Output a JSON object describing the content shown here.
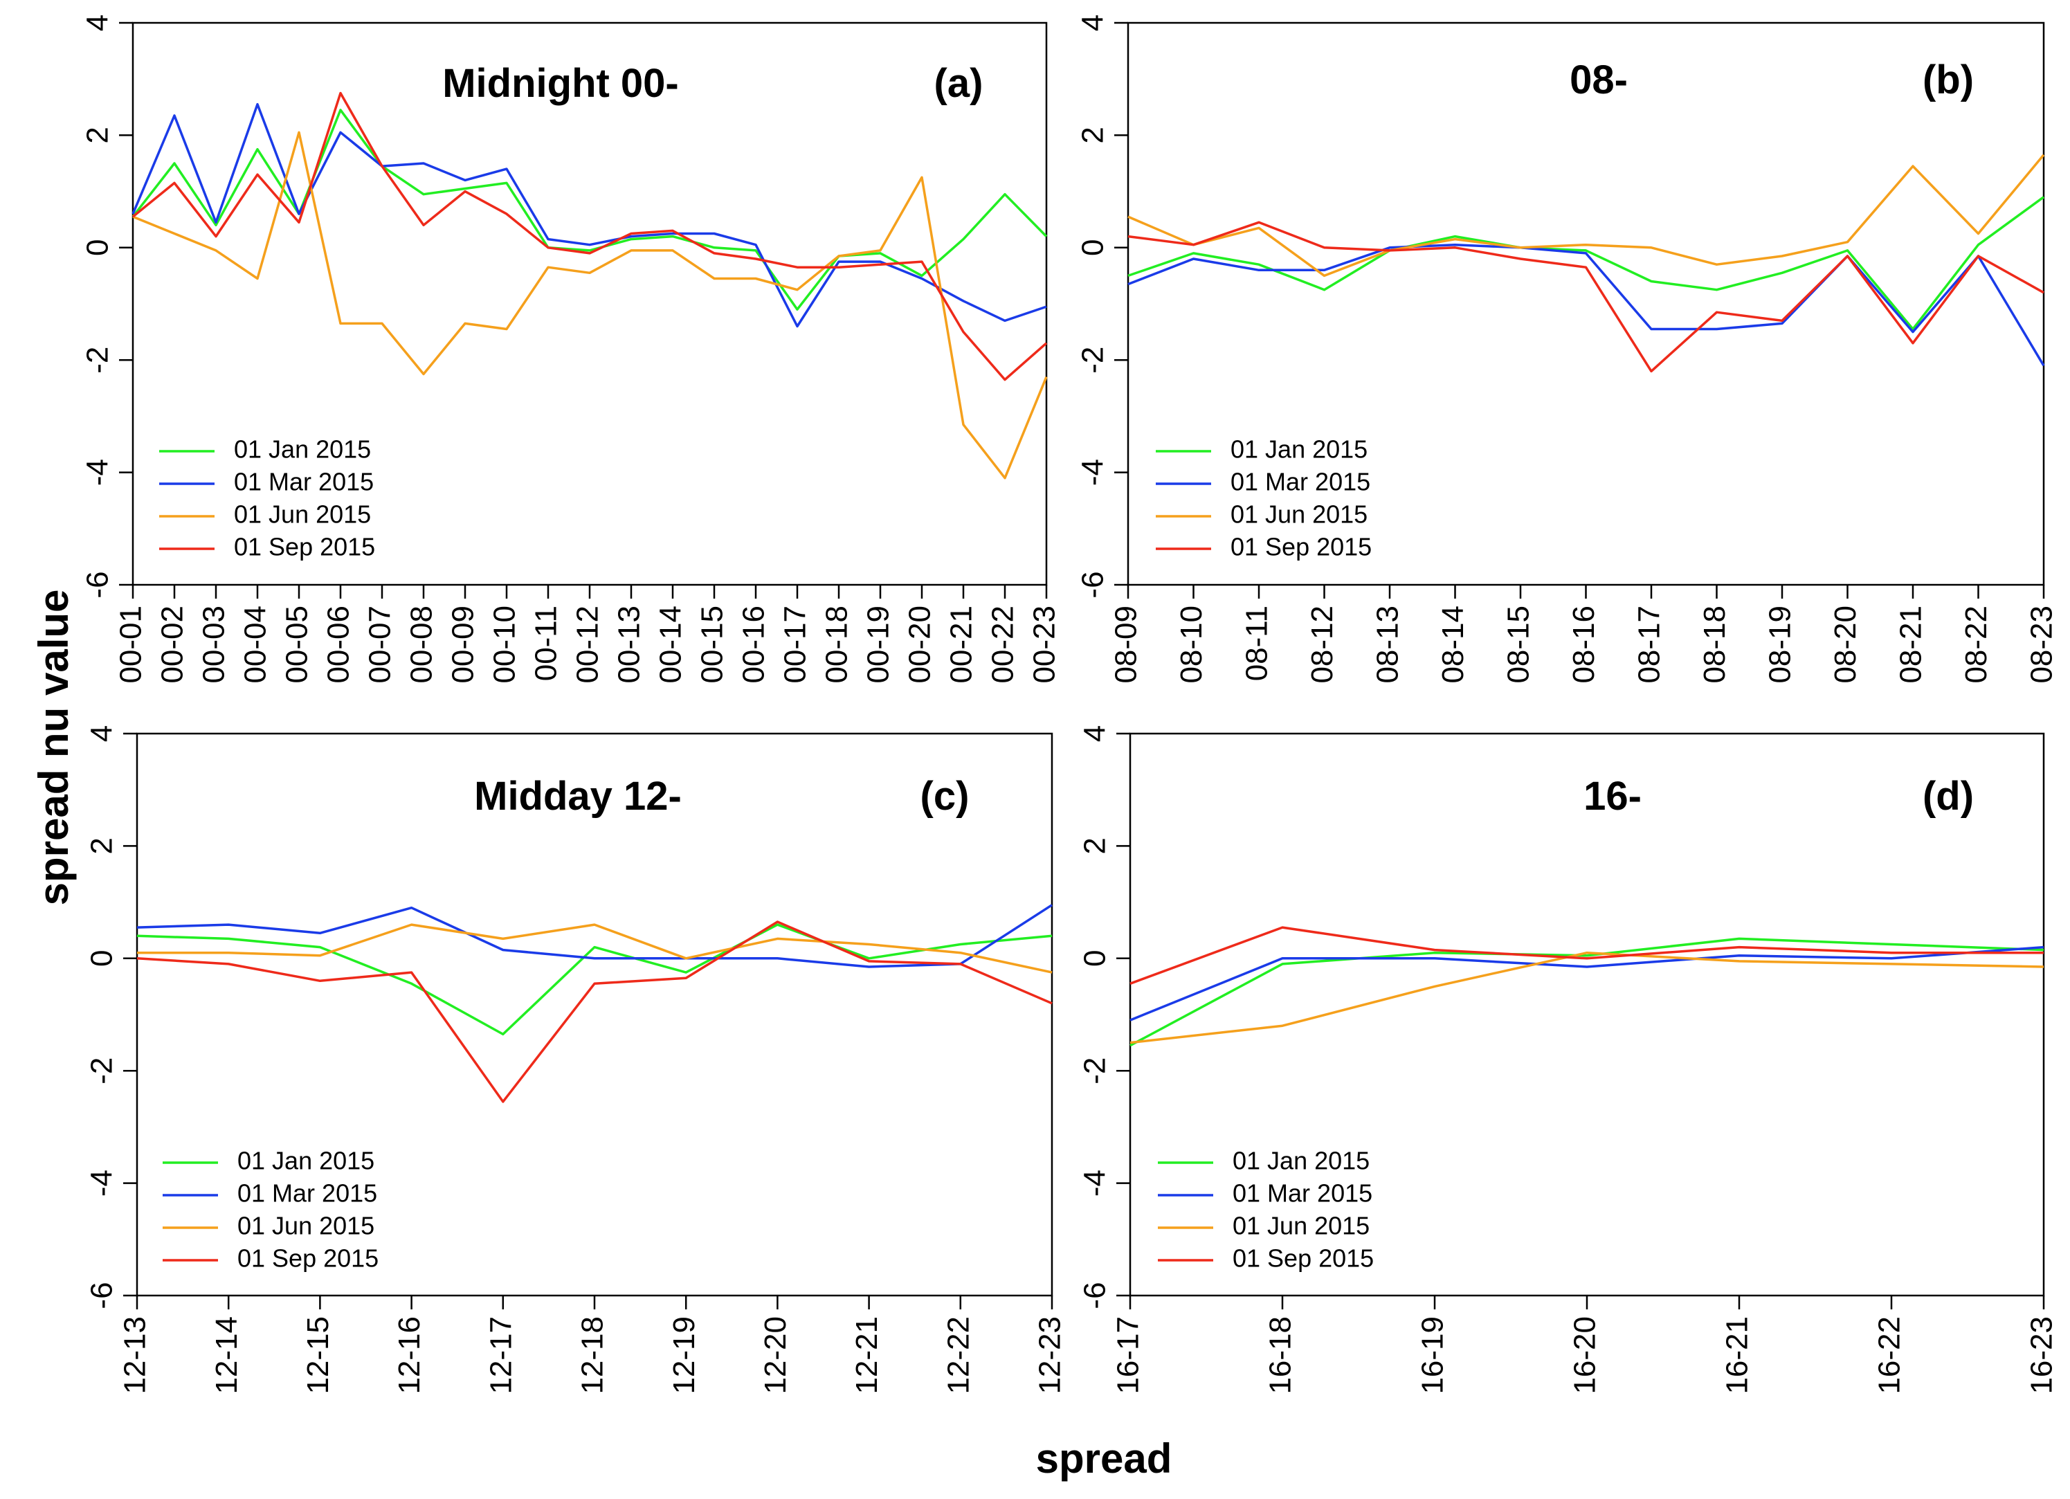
{
  "figure": {
    "ylabel": "spread nu value",
    "xlabel": "spread"
  },
  "series_colors": {
    "01 Jan 2015": "#22ee22",
    "01 Mar 2015": "#1a3be8",
    "01 Jun 2015": "#f5a01c",
    "01 Sep 2015": "#ee2a1a"
  },
  "chart_data": [
    {
      "type": "line",
      "panel": "a",
      "title": "Midnight 00-",
      "tag": "(a)",
      "ylim": [
        -6,
        4
      ],
      "yticks": [
        "-6",
        "-4",
        "-2",
        "0",
        "2",
        "4"
      ],
      "categories": [
        "00-01",
        "00-02",
        "00-03",
        "00-04",
        "00-05",
        "00-06",
        "00-07",
        "00-08",
        "00-09",
        "00-10",
        "00-11",
        "00-12",
        "00-13",
        "00-14",
        "00-15",
        "00-16",
        "00-17",
        "00-18",
        "00-19",
        "00-20",
        "00-21",
        "00-22",
        "00-23"
      ],
      "legend": [
        "01 Jan 2015",
        "01 Mar 2015",
        "01 Jun 2015",
        "01 Sep 2015"
      ],
      "series": [
        {
          "name": "01 Jan 2015",
          "values": [
            0.55,
            1.5,
            0.4,
            1.75,
            0.6,
            2.45,
            1.45,
            0.95,
            1.05,
            1.15,
            0.0,
            -0.05,
            0.15,
            0.2,
            0.0,
            -0.05,
            -1.1,
            -0.15,
            -0.1,
            -0.5,
            0.15,
            0.95,
            0.2
          ]
        },
        {
          "name": "01 Mar 2015",
          "values": [
            0.6,
            2.35,
            0.45,
            2.55,
            0.6,
            2.05,
            1.45,
            1.5,
            1.2,
            1.4,
            0.15,
            0.05,
            0.2,
            0.25,
            0.25,
            0.05,
            -1.4,
            -0.25,
            -0.25,
            -0.55,
            -0.95,
            -1.3,
            -1.05
          ]
        },
        {
          "name": "01 Jun 2015",
          "values": [
            0.55,
            0.25,
            -0.05,
            -0.55,
            2.05,
            -1.35,
            -1.35,
            -2.25,
            -1.35,
            -1.45,
            -0.35,
            -0.45,
            -0.05,
            -0.05,
            -0.55,
            -0.55,
            -0.75,
            -0.15,
            -0.05,
            1.25,
            -3.15,
            -4.1,
            -2.3
          ]
        },
        {
          "name": "01 Sep 2015",
          "values": [
            0.55,
            1.15,
            0.2,
            1.3,
            0.45,
            2.75,
            1.45,
            0.4,
            1.0,
            0.6,
            0.0,
            -0.1,
            0.25,
            0.3,
            -0.1,
            -0.2,
            -0.35,
            -0.35,
            -0.3,
            -0.25,
            -1.5,
            -2.35,
            -1.7
          ]
        }
      ]
    },
    {
      "type": "line",
      "panel": "b",
      "title": "08-",
      "tag": "(b)",
      "ylim": [
        -6,
        4
      ],
      "yticks": [
        "-6",
        "-4",
        "-2",
        "0",
        "2",
        "4"
      ],
      "categories": [
        "08-09",
        "08-10",
        "08-11",
        "08-12",
        "08-13",
        "08-14",
        "08-15",
        "08-16",
        "08-17",
        "08-18",
        "08-19",
        "08-20",
        "08-21",
        "08-22",
        "08-23"
      ],
      "legend": [
        "01 Jan 2015",
        "01 Mar 2015",
        "01 Jun 2015",
        "01 Sep 2015"
      ],
      "series": [
        {
          "name": "01 Jan 2015",
          "values": [
            -0.5,
            -0.1,
            -0.3,
            -0.75,
            -0.05,
            0.2,
            0.0,
            -0.05,
            -0.6,
            -0.75,
            -0.45,
            -0.05,
            -1.45,
            0.05,
            0.9
          ]
        },
        {
          "name": "01 Mar 2015",
          "values": [
            -0.65,
            -0.2,
            -0.4,
            -0.4,
            0.0,
            0.05,
            0.0,
            -0.1,
            -1.45,
            -1.45,
            -1.35,
            -0.15,
            -1.5,
            -0.15,
            -2.1
          ]
        },
        {
          "name": "01 Jun 2015",
          "values": [
            0.55,
            0.05,
            0.35,
            -0.5,
            -0.05,
            0.15,
            0.0,
            0.05,
            0.0,
            -0.3,
            -0.15,
            0.1,
            1.45,
            0.25,
            1.65
          ]
        },
        {
          "name": "01 Sep 2015",
          "values": [
            0.2,
            0.05,
            0.45,
            0.0,
            -0.05,
            0.0,
            -0.2,
            -0.35,
            -2.2,
            -1.15,
            -1.3,
            -0.15,
            -1.7,
            -0.15,
            -0.8
          ]
        }
      ]
    },
    {
      "type": "line",
      "panel": "c",
      "title": "Midday 12-",
      "tag": "(c)",
      "ylim": [
        -6,
        4
      ],
      "yticks": [
        "-6",
        "-4",
        "-2",
        "0",
        "2",
        "4"
      ],
      "categories": [
        "12-13",
        "12-14",
        "12-15",
        "12-16",
        "12-17",
        "12-18",
        "12-19",
        "12-20",
        "12-21",
        "12-22",
        "12-23"
      ],
      "legend": [
        "01 Jan 2015",
        "01 Mar 2015",
        "01 Jun 2015",
        "01 Sep 2015"
      ],
      "series": [
        {
          "name": "01 Jan 2015",
          "values": [
            0.4,
            0.35,
            0.2,
            -0.45,
            -1.35,
            0.2,
            -0.25,
            0.6,
            0.0,
            0.25,
            0.4
          ]
        },
        {
          "name": "01 Mar 2015",
          "values": [
            0.55,
            0.6,
            0.45,
            0.9,
            0.15,
            0.0,
            0.0,
            0.0,
            -0.15,
            -0.1,
            0.95
          ]
        },
        {
          "name": "01 Jun 2015",
          "values": [
            0.1,
            0.1,
            0.05,
            0.6,
            0.35,
            0.6,
            0.0,
            0.35,
            0.25,
            0.1,
            -0.25
          ]
        },
        {
          "name": "01 Sep 2015",
          "values": [
            0.0,
            -0.1,
            -0.4,
            -0.25,
            -2.55,
            -0.45,
            -0.35,
            0.65,
            -0.05,
            -0.1,
            -0.8
          ]
        }
      ]
    },
    {
      "type": "line",
      "panel": "d",
      "title": "16-",
      "tag": "(d)",
      "ylim": [
        -6,
        4
      ],
      "yticks": [
        "-6",
        "-4",
        "-2",
        "0",
        "2",
        "4"
      ],
      "categories": [
        "16-17",
        "16-18",
        "16-19",
        "16-20",
        "16-21",
        "16-22",
        "16-23"
      ],
      "legend": [
        "01 Jan 2015",
        "01 Mar 2015",
        "01 Jun 2015",
        "01 Sep 2015"
      ],
      "series": [
        {
          "name": "01 Jan 2015",
          "values": [
            -1.55,
            -0.1,
            0.1,
            0.05,
            0.35,
            0.25,
            0.15
          ]
        },
        {
          "name": "01 Mar 2015",
          "values": [
            -1.1,
            0.0,
            0.0,
            -0.15,
            0.05,
            0.0,
            0.2
          ]
        },
        {
          "name": "01 Jun 2015",
          "values": [
            -1.5,
            -1.2,
            -0.5,
            0.1,
            -0.05,
            -0.1,
            -0.15
          ]
        },
        {
          "name": "01 Sep 2015",
          "values": [
            -0.45,
            0.55,
            0.15,
            0.0,
            0.2,
            0.1,
            0.1
          ]
        }
      ]
    }
  ]
}
